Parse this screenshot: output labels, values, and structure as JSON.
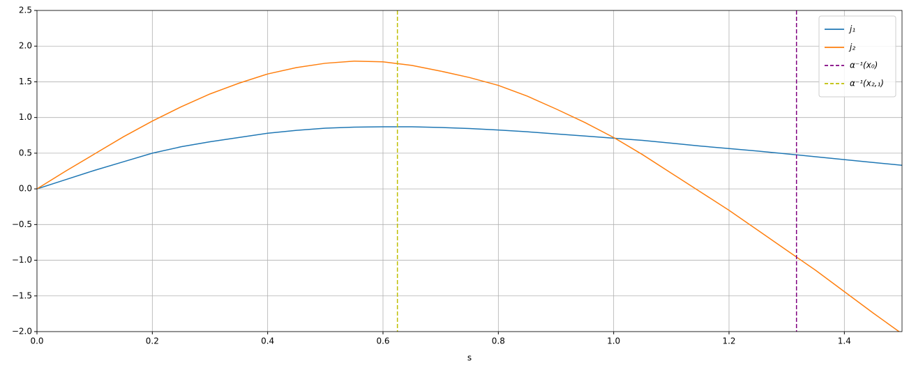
{
  "chart_data": {
    "type": "line",
    "xlabel": "s",
    "x": [
      0,
      0.05,
      0.1,
      0.15,
      0.2,
      0.25,
      0.3,
      0.35,
      0.4,
      0.45,
      0.5,
      0.55,
      0.6,
      0.65,
      0.7,
      0.75,
      0.8,
      0.85,
      0.9,
      0.95,
      1.0,
      1.05,
      1.1,
      1.15,
      1.2,
      1.25,
      1.3,
      1.35,
      1.4,
      1.45,
      1.5
    ],
    "series": [
      {
        "name": "j₁",
        "color": "#1f77b4",
        "values": [
          0,
          0.13,
          0.26,
          0.38,
          0.5,
          0.59,
          0.66,
          0.72,
          0.78,
          0.82,
          0.85,
          0.865,
          0.87,
          0.87,
          0.86,
          0.845,
          0.825,
          0.8,
          0.77,
          0.74,
          0.71,
          0.68,
          0.64,
          0.6,
          0.565,
          0.53,
          0.49,
          0.45,
          0.41,
          0.37,
          0.33
        ]
      },
      {
        "name": "j₂",
        "color": "#ff7f0e",
        "values": [
          0,
          0.25,
          0.49,
          0.73,
          0.95,
          1.15,
          1.33,
          1.48,
          1.61,
          1.7,
          1.76,
          1.79,
          1.78,
          1.73,
          1.65,
          1.56,
          1.45,
          1.3,
          1.12,
          0.93,
          0.72,
          0.48,
          0.22,
          -0.04,
          -0.3,
          -0.58,
          -0.86,
          -1.14,
          -1.44,
          -1.74,
          -2.03
        ]
      }
    ],
    "vlines": [
      {
        "name": "α⁻¹(x₀)",
        "color": "#800080",
        "x": 1.317
      },
      {
        "name": "α⁻¹(x₂,₁)",
        "color": "#bfbf00",
        "x": 0.625
      }
    ],
    "xlim": [
      0,
      1.5
    ],
    "ylim": [
      -2.0,
      2.5
    ],
    "xticks": [
      {
        "value": 0,
        "label": "0.0"
      },
      0.2,
      0.4,
      0.6,
      0.8,
      {
        "value": 1,
        "label": "1.0"
      },
      1.2,
      1.4
    ],
    "yticks": [
      {
        "value": -2,
        "label": "−2.0"
      },
      {
        "value": -1.5,
        "label": "−1.5"
      },
      {
        "value": -1,
        "label": "−1.0"
      },
      {
        "value": -0.5,
        "label": "−0.5"
      },
      {
        "value": 0,
        "label": "0.0"
      },
      0.5,
      {
        "value": 1,
        "label": "1.0"
      },
      1.5,
      {
        "value": 2,
        "label": "2.0"
      },
      2.5
    ],
    "grid": true,
    "legend": "upper-right"
  }
}
